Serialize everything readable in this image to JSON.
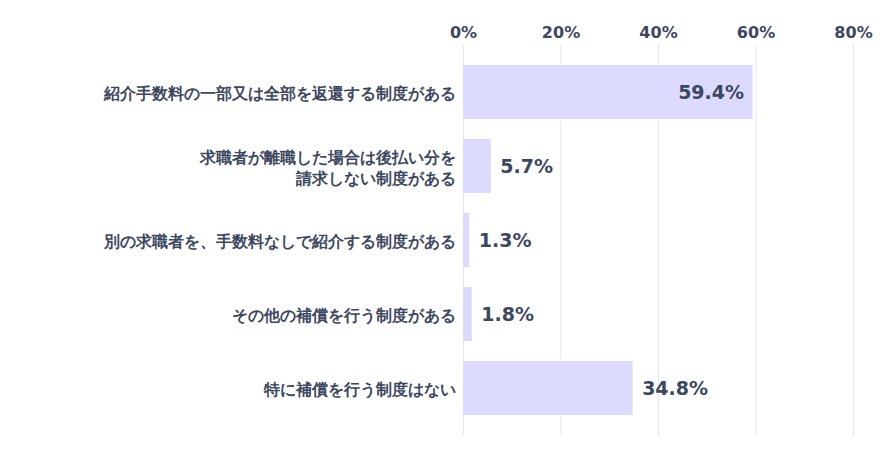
{
  "chart_data": {
    "type": "bar",
    "orientation": "horizontal",
    "categories": [
      "紹介手数料の一部又は全部を返還する制度がある",
      "求職者が離職した場合は後払い分を\n請求しない制度がある",
      "別の求職者を、手数料なしで紹介する制度がある",
      "その他の補償を行う制度がある",
      "特に補償を行う制度はない"
    ],
    "values": [
      59.4,
      5.7,
      1.3,
      1.8,
      34.8
    ],
    "value_labels": [
      "59.4%",
      "5.7%",
      "1.3%",
      "1.8%",
      "34.8%"
    ],
    "color": "#dcdbfd",
    "xlim": [
      0,
      80
    ],
    "xticks": [
      {
        "value": 0,
        "label": "0%"
      },
      {
        "value": 20,
        "label": "20%"
      },
      {
        "value": 40,
        "label": "40%"
      },
      {
        "value": 60,
        "label": "60%"
      },
      {
        "value": 80,
        "label": "80%"
      }
    ],
    "grid": true,
    "data_labels": true
  }
}
